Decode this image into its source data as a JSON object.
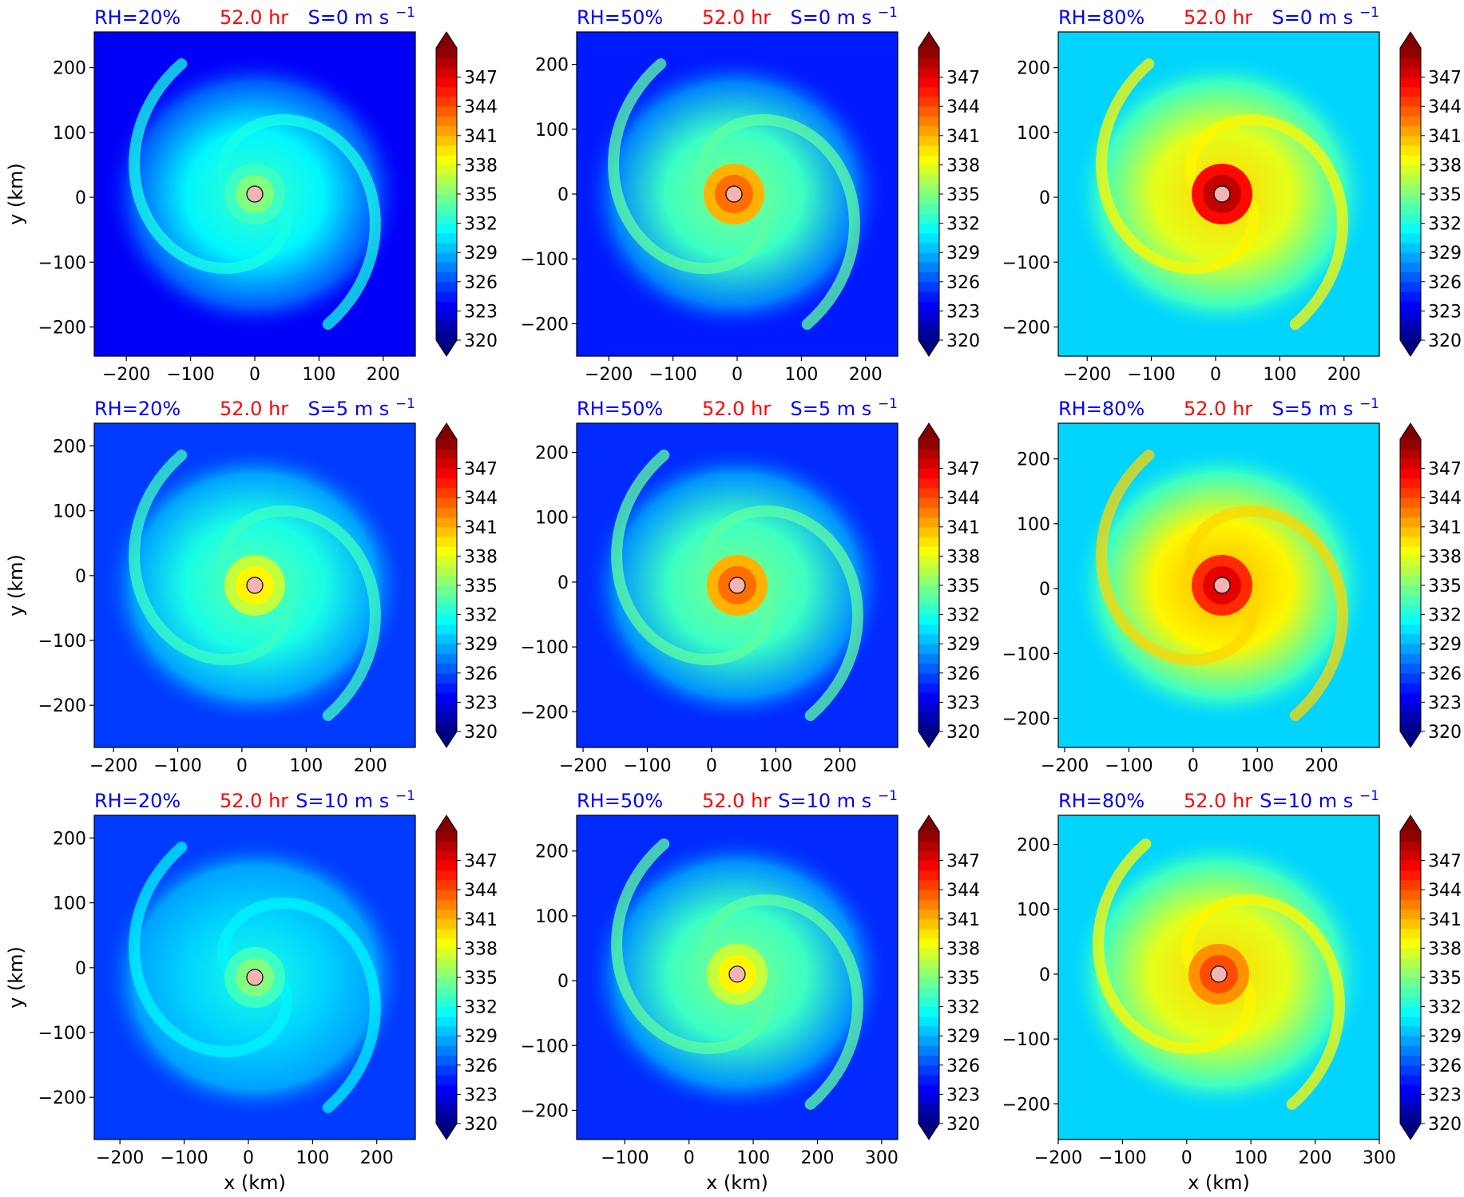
{
  "chart_data": {
    "type": "heatmap",
    "field_note_colormap": "jet",
    "colorbar": {
      "ticks": [
        "347",
        "344",
        "341",
        "338",
        "335",
        "332",
        "329",
        "326",
        "323",
        "320"
      ],
      "min": 320,
      "max": 350,
      "extend": "both"
    },
    "x_label": "x (km)",
    "y_label": "y (km)",
    "panels": [
      {
        "rh": "RH=20%",
        "time": "52.0 hr",
        "shear": "S=0 m s",
        "shear_exp": "−1",
        "xlim": [
          -250,
          250
        ],
        "ylim": [
          -245,
          255
        ],
        "xticks": [
          -200,
          -100,
          0,
          100,
          200
        ],
        "yticks": [
          -200,
          -100,
          0,
          100,
          200
        ],
        "center": [
          0,
          5
        ],
        "bg": 326.5,
        "core": 335,
        "eye": 334,
        "spiral": 332
      },
      {
        "rh": "RH=50%",
        "time": "52.0 hr",
        "shear": "S=0 m s",
        "shear_exp": "−1",
        "xlim": [
          -250,
          250
        ],
        "ylim": [
          -250,
          250
        ],
        "xticks": [
          -200,
          -100,
          0,
          100,
          200
        ],
        "yticks": [
          -200,
          -100,
          0,
          100,
          200
        ],
        "center": [
          -5,
          0
        ],
        "bg": 327.5,
        "core": 343,
        "eye": 336,
        "spiral": 334
      },
      {
        "rh": "RH=80%",
        "time": "52.0 hr",
        "shear": "S=0 m s",
        "shear_exp": "−1",
        "xlim": [
          -245,
          255
        ],
        "ylim": [
          -245,
          255
        ],
        "xticks": [
          -200,
          -100,
          0,
          100,
          200
        ],
        "yticks": [
          -200,
          -100,
          0,
          100,
          200
        ],
        "center": [
          10,
          5
        ],
        "bg": 333,
        "core": 348,
        "eye": 340,
        "spiral": 339
      },
      {
        "rh": "RH=20%",
        "time": "52.0 hr",
        "shear": "S=5 m s",
        "shear_exp": "−1",
        "xlim": [
          -230,
          270
        ],
        "ylim": [
          -265,
          235
        ],
        "xticks": [
          -200,
          -100,
          0,
          100,
          200
        ],
        "yticks": [
          -200,
          -100,
          0,
          100,
          200
        ],
        "center": [
          20,
          -15
        ],
        "bg": 328.5,
        "core": 339,
        "eye": 336,
        "spiral": 333
      },
      {
        "rh": "RH=50%",
        "time": "52.0 hr",
        "shear": "S=5 m s",
        "shear_exp": "−1",
        "xlim": [
          -210,
          290
        ],
        "ylim": [
          -255,
          245
        ],
        "xticks": [
          -200,
          -100,
          0,
          100,
          200
        ],
        "yticks": [
          -200,
          -100,
          0,
          100,
          200
        ],
        "center": [
          40,
          -5
        ],
        "bg": 328,
        "core": 343,
        "eye": 337,
        "spiral": 334
      },
      {
        "rh": "RH=80%",
        "time": "52.0 hr",
        "shear": "S=5 m s",
        "shear_exp": "−1",
        "xlim": [
          -210,
          290
        ],
        "ylim": [
          -245,
          255
        ],
        "xticks": [
          -200,
          -100,
          0,
          100,
          200
        ],
        "yticks": [
          -200,
          -100,
          0,
          100,
          200
        ],
        "center": [
          45,
          5
        ],
        "bg": 333,
        "core": 347,
        "eye": 341,
        "spiral": 340
      },
      {
        "rh": "RH=20%",
        "time": "52.0 hr",
        "shear": "S=10 m s",
        "shear_exp": "−1",
        "xlim": [
          -240,
          260
        ],
        "ylim": [
          -265,
          235
        ],
        "xticks": [
          -200,
          -100,
          0,
          100,
          200
        ],
        "yticks": [
          -200,
          -100,
          0,
          100,
          200
        ],
        "center": [
          10,
          -15
        ],
        "bg": 328.5,
        "core": 335,
        "eye": 334,
        "spiral": 331
      },
      {
        "rh": "RH=50%",
        "time": "52.0 hr",
        "shear": "S=10 m s",
        "shear_exp": "−1",
        "xlim": [
          -175,
          325
        ],
        "ylim": [
          -245,
          255
        ],
        "xticks": [
          -100,
          0,
          100,
          200,
          300
        ],
        "yticks": [
          -200,
          -100,
          0,
          100,
          200
        ],
        "center": [
          75,
          10
        ],
        "bg": 328,
        "core": 339,
        "eye": 337,
        "spiral": 334
      },
      {
        "rh": "RH=80%",
        "time": "52.0 hr",
        "shear": "S=10 m s",
        "shear_exp": "−1",
        "xlim": [
          -200,
          300
        ],
        "ylim": [
          -255,
          245
        ],
        "xticks": [
          -200,
          -100,
          0,
          100,
          200,
          300
        ],
        "yticks": [
          -200,
          -100,
          0,
          100,
          200
        ],
        "center": [
          50,
          0
        ],
        "bg": 333,
        "core": 344,
        "eye": 340,
        "spiral": 339
      }
    ]
  }
}
